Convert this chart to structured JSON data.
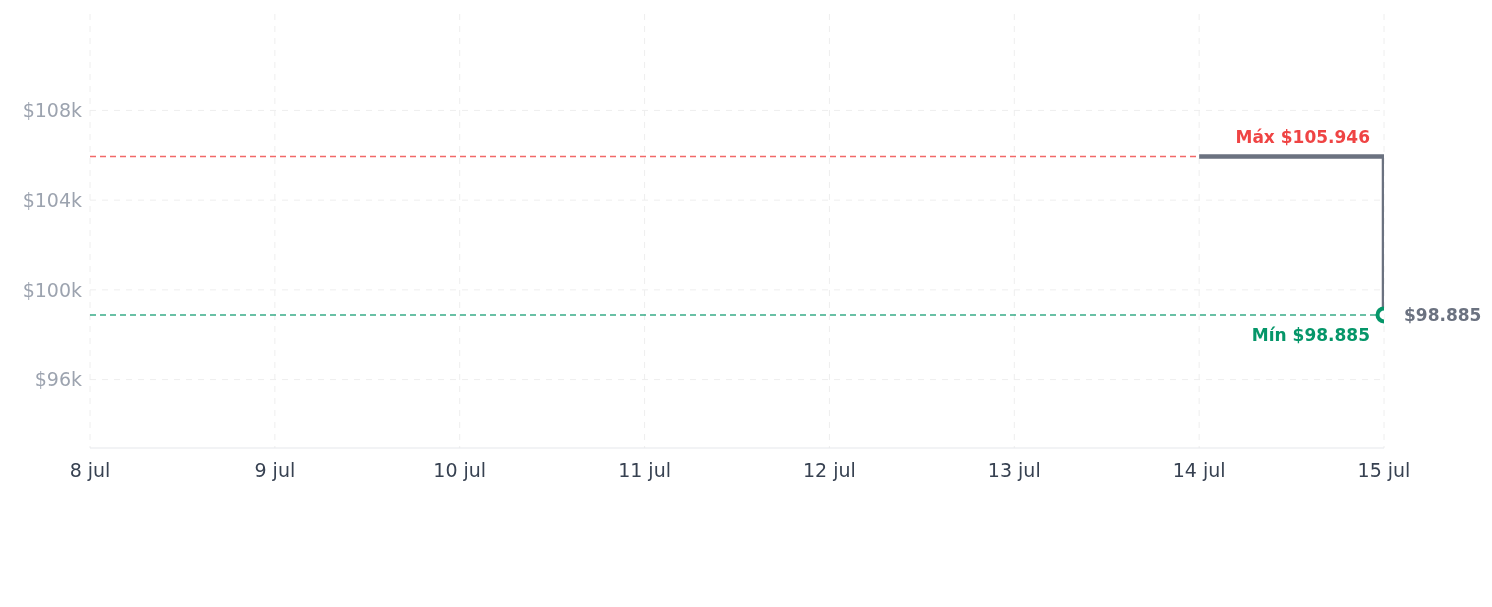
{
  "chart_data": {
    "type": "step",
    "x": [
      "--07-14",
      "--07-15"
    ],
    "series": [
      {
        "color": "#6b7280",
        "values": [
          105946,
          98885
        ],
        "value_labels": [
          null,
          "$98.885"
        ]
      }
    ],
    "xlim": [
      "--07-08",
      "--07-15"
    ],
    "xticks": [
      {
        "value": "--07-08",
        "label": "8 jul"
      },
      {
        "value": "--07-09",
        "label": "9 jul"
      },
      {
        "value": "--07-10",
        "label": "10 jul"
      },
      {
        "value": "--07-11",
        "label": "11 jul"
      },
      {
        "value": "--07-12",
        "label": "12 jul"
      },
      {
        "value": "--07-13",
        "label": "13 jul"
      },
      {
        "value": "--07-14",
        "label": "14 jul"
      },
      {
        "value": "--07-15",
        "label": "15 jul"
      }
    ],
    "ylim": [
      92950,
      112300
    ],
    "yticks": [
      {
        "value": 96000,
        "label": "$96k"
      },
      {
        "value": 100000,
        "label": "$100k"
      },
      {
        "value": 104000,
        "label": "$104k"
      },
      {
        "value": 108000,
        "label": "$108k"
      }
    ],
    "ref_lines": [
      {
        "axis": "y",
        "value": 105946,
        "label": "Máx $105.946",
        "color": "#ef4444",
        "line_style": "dashed"
      },
      {
        "axis": "y",
        "value": 98885,
        "label": "Mín $98.885",
        "color": "#059669",
        "line_style": "dashed"
      }
    ],
    "grid": true,
    "marker": "circle",
    "legend": false
  }
}
